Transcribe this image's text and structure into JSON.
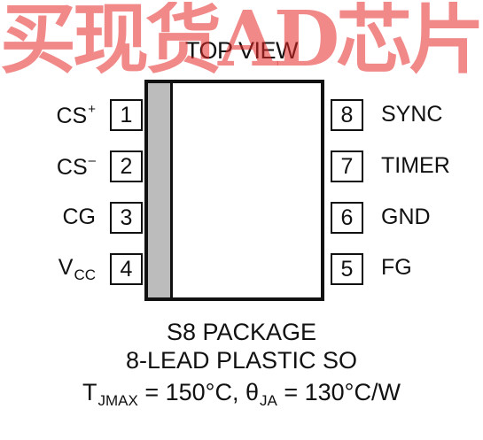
{
  "watermark": "买现货AD芯片选择嘉泰电子",
  "title": "TOP VIEW",
  "pins_left": [
    {
      "number": "1",
      "label": "CS",
      "sup": "+",
      "sub": ""
    },
    {
      "number": "2",
      "label": "CS",
      "sup": "–",
      "sub": ""
    },
    {
      "number": "3",
      "label": "CG",
      "sup": "",
      "sub": ""
    },
    {
      "number": "4",
      "label": "V",
      "sup": "",
      "sub": "CC"
    }
  ],
  "pins_right": [
    {
      "number": "8",
      "label": "SYNC"
    },
    {
      "number": "7",
      "label": "TIMER"
    },
    {
      "number": "6",
      "label": "GND"
    },
    {
      "number": "5",
      "label": "FG"
    }
  ],
  "package": {
    "line1": "S8 PACKAGE",
    "line2": "8-LEAD PLASTIC SO"
  },
  "thermal": {
    "t_prefix": "T",
    "t_sub": "JMAX",
    "t_value": " = 150°C, ",
    "theta": "θ",
    "theta_sub": "JA",
    "theta_value": " = 130°C/W"
  },
  "colors": {
    "ink": "#111111",
    "stripe": "#bcbcbc",
    "watermark": "#e62828"
  }
}
